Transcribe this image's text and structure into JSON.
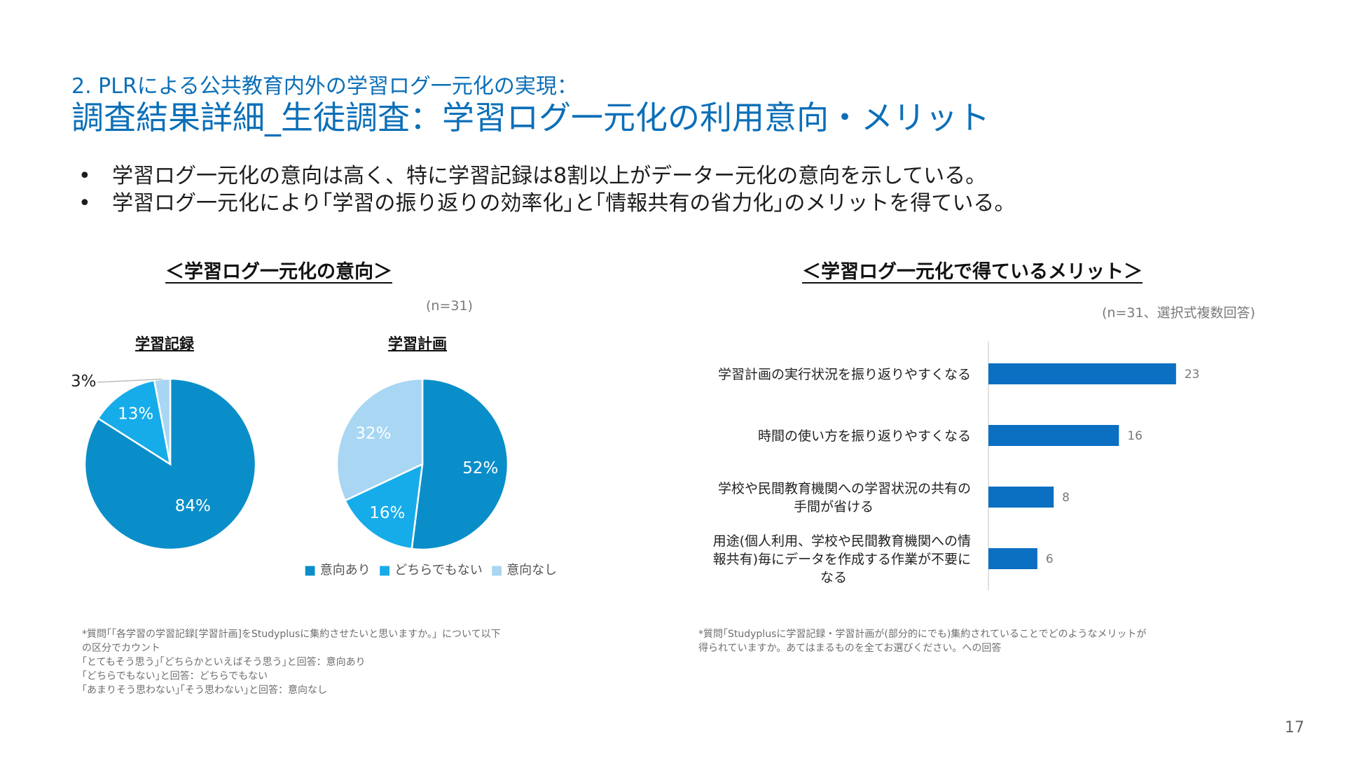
{
  "header": {
    "subtitle": "2. PLRによる公共教育内外の学習ログ一元化の実現：",
    "title": "調査結果詳細_生徒調査：学習ログ一元化の利用意向・メリット"
  },
  "bullets": [
    {
      "dot": "•",
      "text": "学習ログ一元化の意向は高く、特に学習記録は8割以上がデーター元化の意向を示している。"
    },
    {
      "dot": "•",
      "text": "学習ログ一元化により｢学習の振り返りの効率化｣と｢情報共有の省力化｣のメリットを得ている。"
    }
  ],
  "colors": {
    "dark": "#0a8ec9",
    "mid": "#16acea",
    "light": "#a8d6f3",
    "bar": "#0b6fc2"
  },
  "chart_data": [
    {
      "type": "pie",
      "title": "学習記録",
      "section_title": "＜学習ログ一元化の意向＞",
      "n_label": "(n=31)",
      "slices": [
        {
          "name": "意向あり",
          "value": 84,
          "label": "84%"
        },
        {
          "name": "どちらでもない",
          "value": 13,
          "label": "13%"
        },
        {
          "name": "意向なし",
          "value": 3,
          "label": "3%"
        }
      ]
    },
    {
      "type": "pie",
      "title": "学習計画",
      "slices": [
        {
          "name": "意向あり",
          "value": 52,
          "label": "52%"
        },
        {
          "name": "どちらでもない",
          "value": 16,
          "label": "16%"
        },
        {
          "name": "意向なし",
          "value": 32,
          "label": "32%"
        }
      ],
      "legend": [
        "意向あり",
        "どちらでもない",
        "意向なし"
      ]
    },
    {
      "type": "bar",
      "orientation": "horizontal",
      "title": "＜学習ログ一元化で得ているメリット＞",
      "n_label": "(n=31、選択式複数回答)",
      "categories": [
        "学習計画の実行状況を振り返りやすくなる",
        "時間の使い方を振り返りやすくなる",
        "学校や民間教育機関への学習状況の共有の手間が省ける",
        "用途(個人利用、学校や民間教育機関への情報共有)毎にデータを作成する作業が不要になる"
      ],
      "category_lines": [
        [
          "学習計画の実行状況を振り返りやすくなる"
        ],
        [
          "時間の使い方を振り返りやすくなる"
        ],
        [
          "学校や民間教育機関への学習状況の共有の",
          "手間が省ける"
        ],
        [
          "用途(個人利用、学校や民間教育機関への情",
          "報共有)毎にデータを作成する作業が不要に",
          "なる"
        ]
      ],
      "values": [
        23,
        16,
        8,
        6
      ],
      "xlim": [
        0,
        31
      ]
    }
  ],
  "footnotes": {
    "left": [
      "*質問｢「各学習の学習記録[学習計画]をStudyplusに集約させたいと思いますか。」について以下",
      "の区分でカウント",
      "｢とてもそう思う｣｢どちらかといえばそう思う｣と回答：意向あり",
      "｢どちらでもない｣と回答：どちらでもない",
      "｢あまりそう思わない｣｢そう思わない｣と回答：意向なし"
    ],
    "right": [
      "*質問｢Studyplusに学習記録・学習計画が(部分的にでも)集約されていることでどのようなメリットが",
      "得られていますか。あてはまるものを全てお選びください。への回答"
    ]
  },
  "page_number": "17"
}
